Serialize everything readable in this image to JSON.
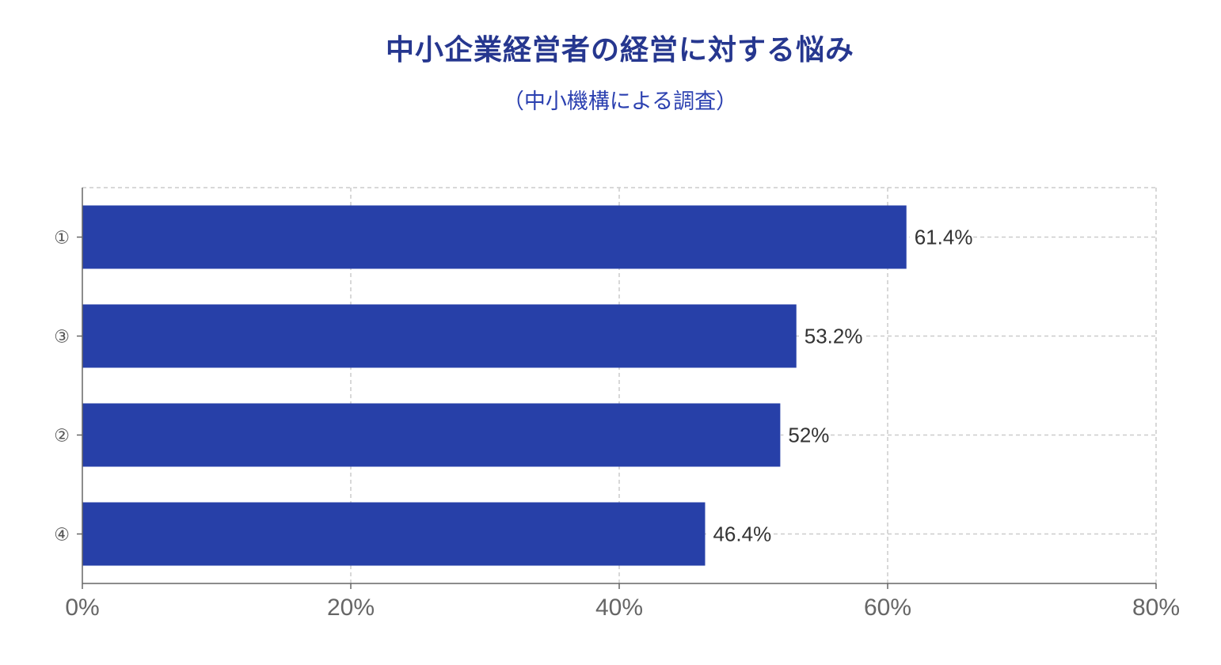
{
  "title": "中小企業経営者の経営に対する悩み",
  "subtitle": "（中小機構による調査）",
  "chart_data": {
    "type": "bar",
    "orientation": "horizontal",
    "title": "中小企業経営者の経営に対する悩み",
    "subtitle": "（中小機構による調査）",
    "categories": [
      "①",
      "③",
      "②",
      "④"
    ],
    "values": [
      61.4,
      53.2,
      52,
      46.4
    ],
    "value_labels": [
      "61.4%",
      "53.2%",
      "52%",
      "46.4%"
    ],
    "xlim": [
      0,
      80
    ],
    "x_ticks": [
      0,
      20,
      40,
      60,
      80
    ],
    "x_tick_labels": [
      "0%",
      "20%",
      "40%",
      "60%",
      "80%"
    ],
    "xlabel": "",
    "ylabel": "",
    "grid": true,
    "bar_color": "#2740a8",
    "grid_color": "#cccccc",
    "axis_color": "#666666"
  }
}
